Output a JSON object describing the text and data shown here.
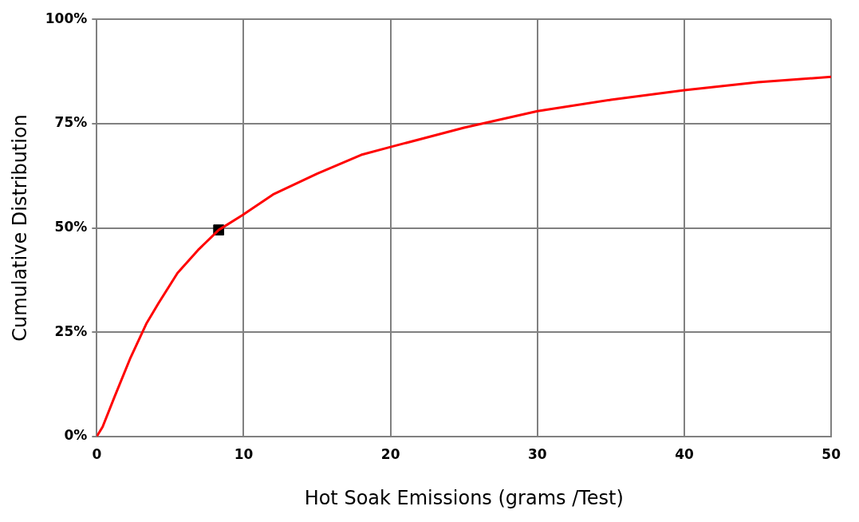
{
  "chart_data": {
    "type": "line",
    "xlabel": "Hot Soak Emissions (grams /Test)",
    "ylabel": "Cumulative Distribution",
    "xlim": [
      0,
      50
    ],
    "xticks": [
      0,
      10,
      20,
      30,
      40,
      50
    ],
    "ylim": [
      0,
      100
    ],
    "yticks": [
      {
        "value": 0,
        "label": "0%"
      },
      {
        "value": 25,
        "label": "25%"
      },
      {
        "value": 50,
        "label": "50%"
      },
      {
        "value": 75,
        "label": "75%"
      },
      {
        "value": 100,
        "label": "100%"
      }
    ],
    "grid": true,
    "series": [
      {
        "type": "line",
        "color": "#ff0000",
        "marker": "none",
        "x": [
          0,
          0.4,
          1.2,
          2.3,
          3.4,
          4.2,
          5.5,
          6.9,
          8.3,
          9.9,
          12,
          15,
          18,
          20,
          25,
          30,
          35,
          40,
          45,
          50
        ],
        "values": [
          0,
          2.3,
          9.4,
          18.9,
          27.2,
          31.9,
          39.2,
          44.7,
          49.5,
          53,
          58,
          63,
          67.5,
          69.4,
          74,
          78,
          80.7,
          83,
          84.9,
          86.2
        ]
      },
      {
        "type": "scatter",
        "color": "#000000",
        "marker": "square",
        "x": [
          8.3
        ],
        "values": [
          49.5
        ]
      }
    ]
  }
}
